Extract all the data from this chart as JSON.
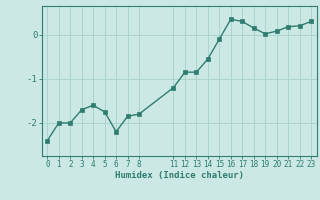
{
  "x": [
    0,
    1,
    2,
    3,
    4,
    5,
    6,
    7,
    8,
    11,
    12,
    13,
    14,
    15,
    16,
    17,
    18,
    19,
    20,
    21,
    22,
    23
  ],
  "y": [
    -2.4,
    -2.0,
    -2.0,
    -1.7,
    -1.6,
    -1.75,
    -2.2,
    -1.85,
    -1.8,
    -1.2,
    -0.85,
    -0.85,
    -0.55,
    -0.1,
    0.35,
    0.3,
    0.15,
    0.02,
    0.08,
    0.18,
    0.2,
    0.3
  ],
  "line_color": "#2e7d70",
  "marker_color": "#2e7d70",
  "bg_color": "#cce8e4",
  "grid_color": "#aad4cf",
  "axis_color": "#2e7d70",
  "xlabel": "Humidex (Indice chaleur)",
  "yticks": [
    -2,
    -1,
    0
  ],
  "ylim": [
    -2.75,
    0.65
  ],
  "xlim": [
    -0.5,
    23.5
  ],
  "xticks": [
    0,
    1,
    2,
    3,
    4,
    5,
    6,
    7,
    8,
    11,
    12,
    13,
    14,
    15,
    16,
    17,
    18,
    19,
    20,
    21,
    22,
    23
  ],
  "font_color": "#2e7d70",
  "figsize": [
    3.2,
    2.0
  ],
  "dpi": 100
}
